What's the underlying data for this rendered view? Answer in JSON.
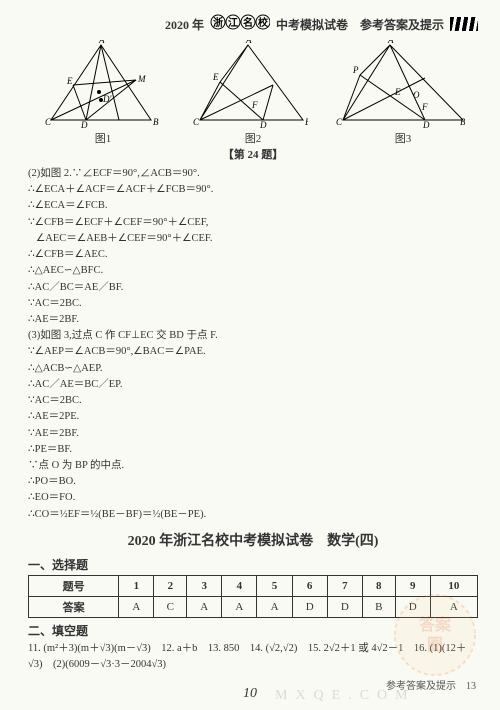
{
  "header": {
    "year": "2020 年",
    "circle1": "浙",
    "circle2": "江",
    "circle3": "名",
    "circle4": "校",
    "rest": "中考模拟试卷　参考答案及提示"
  },
  "figs": {
    "cap1": "图1",
    "cap2": "图2",
    "cap3": "图3",
    "group": "【第 24 题】"
  },
  "proof": [
    "(2)如图 2.∵∠ECF＝90°,∠ACB＝90°.",
    "∴∠ECA＋∠ACF＝∠ACF＋∠FCB＝90°.",
    "∴∠ECA＝∠FCB.",
    "∵∠CFB＝∠ECF＋∠CEF＝90°＋∠CEF,",
    "   ∠AEC＝∠AEB＋∠CEF＝90°＋∠CEF.",
    "∴∠CFB＝∠AEC.",
    "∴△AEC∽△BFC.",
    "∴AC／BC＝AE／BF.",
    "∵AC＝2BC.",
    "∴AE＝2BF.",
    "(3)如图 3,过点 C 作 CF⊥EC 交 BD 于点 F.",
    "∵∠AEP＝∠ACB＝90°,∠BAC＝∠PAE.",
    "∴△ACB∽△AEP.",
    "∴AC／AE＝BC／EP.",
    "∵AC＝2BC.",
    "∴AE＝2PE.",
    "∵AE＝2BF.",
    "∴PE＝BF.",
    "∵点 O 为 BP 的中点.",
    "∴PO＝BO.",
    "∴EO＝FO.",
    "∴CO＝½EF＝½(BE－BF)＝½(BE－PE)."
  ],
  "sectionTitle": "2020 年浙江名校中考模拟试卷　数学(四)",
  "choiceLabel": "一、选择题",
  "table": {
    "rowLabel1": "题号",
    "rowLabel2": "答案",
    "nums": [
      "1",
      "2",
      "3",
      "4",
      "5",
      "6",
      "7",
      "8",
      "9",
      "10"
    ],
    "ans": [
      "A",
      "C",
      "A",
      "A",
      "A",
      "D",
      "D",
      "B",
      "D",
      "A"
    ]
  },
  "fillLabel": "二、填空题",
  "fill": "11. (m²＋3)(m＋√3)(m－√3)　12. a＋b　13. 850　14. (√2,√2)　15. 2√2＋1 或 4√2－1　16. (1)(12＋√3)　(2)(6009－√3·3－2004√3)",
  "footer": "参考答案及提示　13",
  "pageno": "10",
  "watermarkText": "MXQE.COM",
  "colors": {
    "wm_fill": "#ff9a3c",
    "wm_stroke": "#e06500"
  }
}
